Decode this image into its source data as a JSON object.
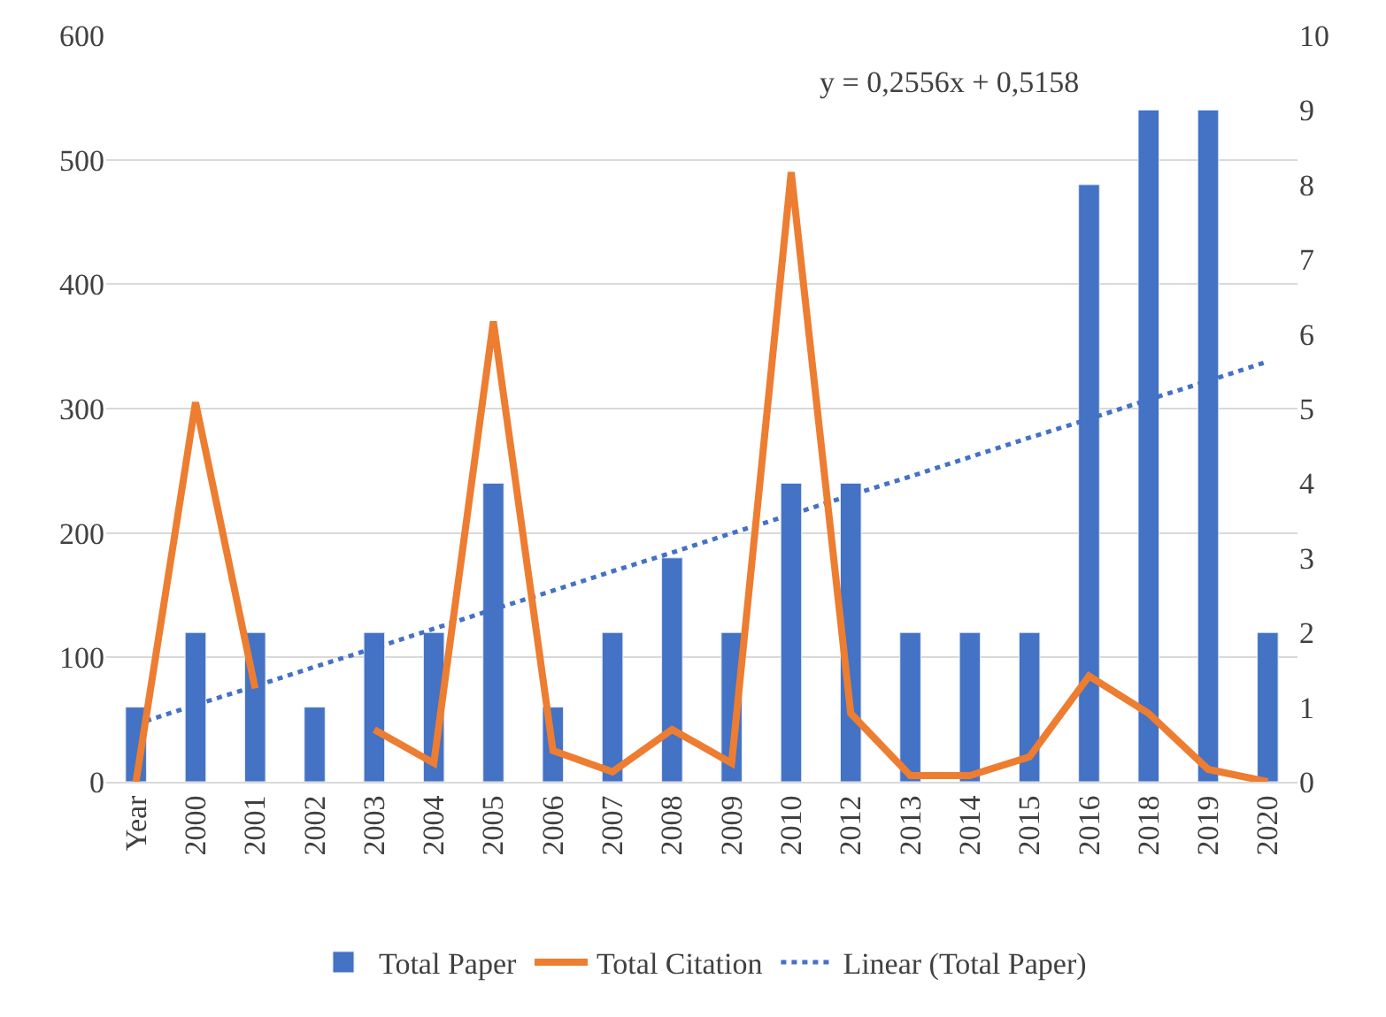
{
  "chart_data": {
    "type": "bar",
    "categories": [
      "Year",
      "2000",
      "2001",
      "2002",
      "2003",
      "2004",
      "2005",
      "2006",
      "2007",
      "2008",
      "2009",
      "2010",
      "2012",
      "2013",
      "2014",
      "2015",
      "2016",
      "2018",
      "2019",
      "2020"
    ],
    "series": [
      {
        "name": "Total Paper",
        "axis": "y2",
        "color": "#4472c4",
        "values": [
          1,
          2,
          2,
          1,
          2,
          2,
          4,
          1,
          2,
          3,
          2,
          4,
          4,
          2,
          2,
          2,
          8,
          9,
          9,
          2
        ]
      },
      {
        "name": "Total Citation",
        "type": "line",
        "color": "#ed7d31",
        "line_style": "solid",
        "values": [
          0,
          305,
          75,
          null,
          42,
          15,
          370,
          25,
          8,
          42,
          15,
          490,
          55,
          5,
          5,
          20,
          85,
          55,
          10,
          0
        ]
      },
      {
        "name": "Linear (Total Paper)",
        "type": "line",
        "axis": "y2",
        "color": "#4472c4",
        "line_style": "dotted",
        "values": [
          0.77,
          1.03,
          1.28,
          1.54,
          1.79,
          2.05,
          2.31,
          2.56,
          2.82,
          3.07,
          3.33,
          3.58,
          3.84,
          4.09,
          4.35,
          4.61,
          4.86,
          5.12,
          5.37,
          5.63
        ]
      }
    ],
    "ylim": [
      0,
      600
    ],
    "yticks": [
      0,
      100,
      200,
      300,
      400,
      500,
      600
    ],
    "y2lim": [
      0,
      10
    ],
    "y2ticks": [
      0,
      1,
      2,
      3,
      4,
      5,
      6,
      7,
      8,
      9,
      10
    ],
    "annotations": [
      "y = 0,2556x + 0,5158"
    ],
    "grid": "y",
    "legend": "bottom",
    "marker": "none"
  }
}
